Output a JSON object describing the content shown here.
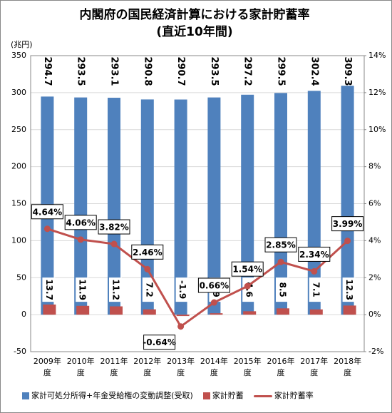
{
  "chart_data": {
    "type": "bar-line",
    "title": "内閣府の国民経済計算における家計貯蓄率",
    "subtitle": "(直近10年間)",
    "y_label": "(兆円)",
    "categories": [
      "2009年\n度",
      "2010年\n度",
      "2011年\n度",
      "2012年\n度",
      "2013年\n度",
      "2014年\n度",
      "2015年\n度",
      "2016年\n度",
      "2017年\n度",
      "2018年\n度"
    ],
    "series": [
      {
        "name": "家計可処分所得+年金受給権の変動調整(受取)",
        "color": "#4f81bd",
        "values": [
          294.7,
          293.5,
          293.1,
          290.8,
          290.7,
          293.5,
          297.2,
          299.5,
          302.4,
          309.3
        ]
      },
      {
        "name": "家計貯蓄",
        "color": "#c0504d",
        "values": [
          13.7,
          11.9,
          11.2,
          7.2,
          -1.9,
          1.9,
          4.6,
          8.5,
          7.1,
          12.3
        ]
      },
      {
        "name": "家計貯蓄率",
        "color": "#c0504d",
        "axis": "y2",
        "values": [
          4.64,
          4.06,
          3.82,
          2.46,
          -0.64,
          0.66,
          1.54,
          2.85,
          2.34,
          3.99
        ],
        "value_labels": [
          "4.64%",
          "4.06%",
          "3.82%",
          "2.46%",
          "-0.64%",
          "0.66%",
          "1.54%",
          "2.85%",
          "2.34%",
          "3.99%"
        ]
      }
    ],
    "ylim": [
      -50,
      350
    ],
    "yticks": [
      -50,
      0,
      50,
      100,
      150,
      200,
      250,
      300,
      350
    ],
    "y2lim": [
      -2,
      14
    ],
    "y2ticks": [
      {
        "value": -2,
        "label": "-2%"
      },
      {
        "value": 0,
        "label": "0%"
      },
      {
        "value": 2,
        "label": "2%"
      },
      {
        "value": 4,
        "label": "4%"
      },
      {
        "value": 6,
        "label": "6%"
      },
      {
        "value": 8,
        "label": "8%"
      },
      {
        "value": 10,
        "label": "10%"
      },
      {
        "value": 12,
        "label": "12%"
      },
      {
        "value": 14,
        "label": "14%"
      }
    ],
    "grid": true
  }
}
